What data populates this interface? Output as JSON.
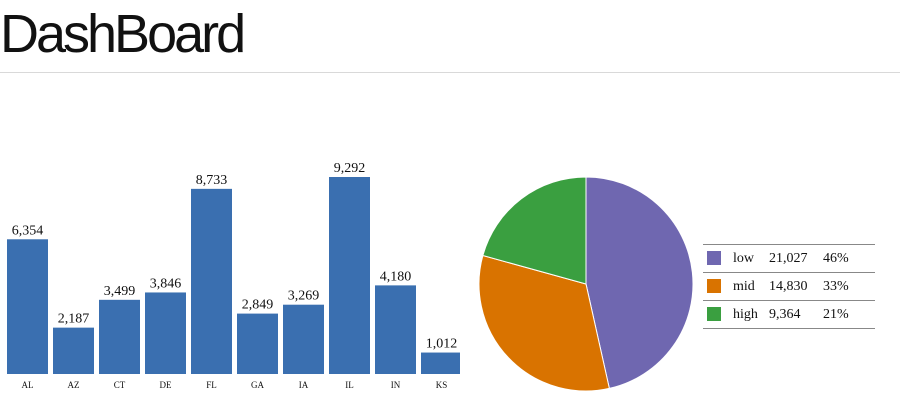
{
  "header": {
    "title": "DashBoard"
  },
  "colors": {
    "bar": "#3a6fb0",
    "low": "#6f67b0",
    "mid": "#d97300",
    "high": "#3a9f40"
  },
  "chart_data": [
    {
      "type": "bar",
      "categories": [
        "AL",
        "AZ",
        "CT",
        "DE",
        "FL",
        "GA",
        "IA",
        "IL",
        "IN",
        "KS"
      ],
      "values": [
        6354,
        2187,
        3499,
        3846,
        8733,
        2849,
        3269,
        9292,
        4180,
        1012
      ],
      "value_labels": [
        "6,354",
        "2,187",
        "3,499",
        "3,846",
        "8,733",
        "2,849",
        "3,269",
        "9,292",
        "4,180",
        "1,012"
      ],
      "ylim": [
        0,
        9292
      ],
      "grid": false,
      "title": "",
      "xlabel": "",
      "ylabel": ""
    },
    {
      "type": "pie",
      "categories": [
        "low",
        "mid",
        "high"
      ],
      "values": [
        21027,
        14830,
        9364
      ],
      "value_labels": [
        "21,027",
        "14,830",
        "9,364"
      ],
      "percent_labels": [
        "46%",
        "33%",
        "21%"
      ],
      "legend_placement": "right",
      "title": ""
    }
  ]
}
